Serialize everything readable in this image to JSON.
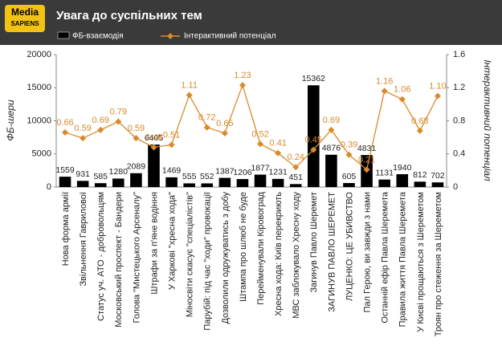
{
  "logo": {
    "line1": "Media",
    "line2": "SAPIENS"
  },
  "chart_data": {
    "type": "bar_line",
    "title": "Увага до суспільних тем",
    "y_label": "ФБ-шери",
    "y2_label": "Інтерактивний потенціал",
    "categories": [
      "Нова форма армії",
      "Звільнення Гаврилової",
      "Статус уч. АТО - добровольцям",
      "Московський проспект - Бандери",
      "Голова \"Мистецького Арсеналу\"",
      "Штрафи за п'яне водіння",
      "У Харкові \"хресна хода\"",
      "Міносвіти скасує \"спеціалістів\"",
      "Парубій: під час \"ходи\" провокації",
      "Дозволили одружуватись з добу",
      "Штампа про шлюб не буде",
      "Перейменували Кіровоград",
      "Хресна хода: Київ перекриють",
      "МВС заблокувало Хресну ходу",
      "Загинув Павло Шеремет",
      "ЗАГИНУВ ПАВЛО ШЕРЕМЕТ",
      "ЛУЦЕНКО: ЦЕ УБИВСТВО",
      "Пал Герою, ви завжди з нами",
      "Останній ефір Павла Шеремета",
      "Правила життя Павла Шеремета",
      "У Києві прощаються з Шереметом",
      "Троян про стеження за Шереметом"
    ],
    "series": [
      {
        "name": "ФБ-взаємодія",
        "type": "bar",
        "color": "#000000",
        "values": [
          1559,
          931,
          585,
          1280,
          2089,
          6405,
          1469,
          555,
          552,
          1387,
          1206,
          1877,
          1231,
          451,
          15362,
          4876,
          605,
          4831,
          1131,
          1940,
          812,
          702
        ]
      },
      {
        "name": "Інтерактивний потенціал",
        "type": "line",
        "axis": "y2",
        "color": "#d98a2b",
        "values": [
          0.66,
          0.59,
          0.69,
          0.79,
          0.59,
          0.48,
          0.51,
          1.11,
          0.72,
          0.65,
          1.23,
          0.52,
          0.41,
          0.24,
          0.45,
          0.69,
          0.39,
          0.21,
          1.16,
          1.06,
          0.68,
          1.1
        ],
        "value_labels": [
          "0.66",
          "0.59",
          "0.69",
          "0.79",
          "0.59",
          "0.48",
          "0.51",
          "1.11",
          "0.72",
          "0.65",
          "1.23",
          "0.52",
          "0.41",
          "0.24",
          "0.45",
          "0.69",
          "0.39",
          "0.21",
          "1.16",
          "1.06",
          "0.68",
          "1.10"
        ]
      }
    ],
    "ylim": [
      0,
      20000
    ],
    "yticks": [
      0,
      5000,
      10000,
      15000,
      20000
    ],
    "y2lim": [
      0,
      1.6
    ],
    "y2ticks": [
      0,
      0.4,
      0.8,
      1.2,
      1.6
    ]
  }
}
